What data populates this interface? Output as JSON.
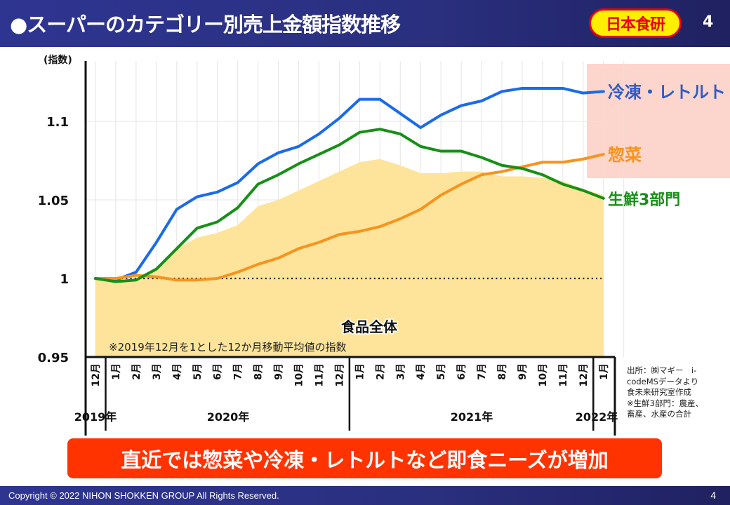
{
  "header": {
    "title": "●スーパーのカテゴリー別売上金額指数推移",
    "logo_text": "日本食研",
    "page_number": "4"
  },
  "banner": {
    "text": "直近では惣菜や冷凍・レトルトなど即食ニーズが増加"
  },
  "footer": {
    "copyright": "Copyright © 2022 NIHON SHOKKEN GROUP All Rights Reserved.",
    "page_number": "4"
  },
  "source_note": [
    "出所：㈱マギー　i-",
    "codeMSデータより",
    "食未来研究室作成",
    "※生鮮3部門：農産、",
    "畜産、水産の合計"
  ],
  "colors": {
    "frozen": "#1a6bea",
    "sozai": "#f7931e",
    "fresh": "#169016",
    "total_fill": "#fde49a",
    "highlight": "#fcd5cc",
    "frozen_label": "#2f5bc9"
  },
  "chart_data": {
    "type": "line",
    "title": "スーパーのカテゴリー別売上金額指数推移",
    "ylabel": "(指数)",
    "xlabel": "",
    "ylim": [
      0.95,
      1.125
    ],
    "yticks": [
      0.95,
      1,
      1.05,
      1.1
    ],
    "ytick_labels": [
      "0.95",
      "1",
      "1.05",
      "1.1"
    ],
    "grid": true,
    "categories": [
      "12月",
      "1月",
      "2月",
      "3月",
      "4月",
      "5月",
      "6月",
      "7月",
      "8月",
      "9月",
      "10月",
      "11月",
      "12月",
      "1月",
      "2月",
      "3月",
      "4月",
      "5月",
      "6月",
      "7月",
      "8月",
      "9月",
      "10月",
      "11月",
      "12月",
      "1月"
    ],
    "year_groups": [
      {
        "label": "2019年",
        "start": 0,
        "end": 0
      },
      {
        "label": "2020年",
        "start": 1,
        "end": 12
      },
      {
        "label": "2021年",
        "start": 13,
        "end": 24
      },
      {
        "label": "2022年",
        "start": 25,
        "end": 25
      }
    ],
    "baseline": 1,
    "note": "※2019年12月を1とした12か月移動平均値の指数",
    "area_series": {
      "name": "食品全体",
      "values": [
        1.0,
        0.999,
        0.999,
        1.005,
        1.019,
        1.026,
        1.029,
        1.034,
        1.046,
        1.05,
        1.056,
        1.062,
        1.068,
        1.074,
        1.076,
        1.072,
        1.067,
        1.067,
        1.068,
        1.068,
        1.065,
        1.065,
        1.064,
        1.062,
        1.057,
        1.053
      ]
    },
    "series": [
      {
        "name": "冷凍・レトルト",
        "key": "frozen",
        "values": [
          1.0,
          0.999,
          1.004,
          1.023,
          1.044,
          1.052,
          1.055,
          1.061,
          1.073,
          1.08,
          1.084,
          1.092,
          1.102,
          1.114,
          1.114,
          1.105,
          1.096,
          1.104,
          1.11,
          1.113,
          1.119,
          1.121,
          1.121,
          1.121,
          1.118,
          1.119
        ]
      },
      {
        "name": "惣菜",
        "key": "sozai",
        "values": [
          1.0,
          1.0,
          1.002,
          1.001,
          0.999,
          0.999,
          1.0,
          1.004,
          1.009,
          1.013,
          1.019,
          1.023,
          1.028,
          1.03,
          1.033,
          1.038,
          1.044,
          1.053,
          1.06,
          1.066,
          1.068,
          1.071,
          1.074,
          1.074,
          1.076,
          1.079
        ]
      },
      {
        "name": "生鮮3部門",
        "key": "fresh",
        "values": [
          1.0,
          0.998,
          0.999,
          1.006,
          1.019,
          1.032,
          1.036,
          1.045,
          1.06,
          1.066,
          1.073,
          1.079,
          1.085,
          1.093,
          1.095,
          1.092,
          1.084,
          1.081,
          1.081,
          1.077,
          1.072,
          1.07,
          1.066,
          1.06,
          1.056,
          1.051
        ]
      }
    ],
    "legend": "right (direct labels)",
    "highlight_region": "recent months (right edge) with labels 冷凍・レトルト and 惣菜"
  }
}
